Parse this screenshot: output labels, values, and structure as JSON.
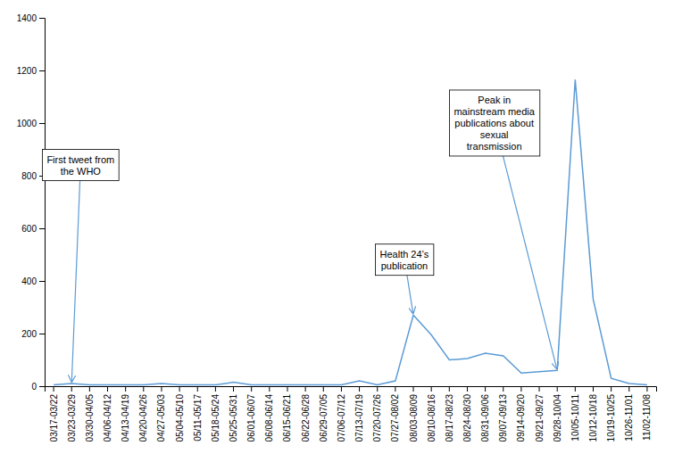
{
  "chart_data": {
    "type": "line",
    "categories": [
      "03/17-03/22",
      "03/23-03/29",
      "03/30-04/05",
      "04/06-04/12",
      "04/13-04/19",
      "04/20-04/26",
      "04/27-05/03",
      "05/04-05/10",
      "05/11-05/17",
      "05/18-05/24",
      "05/25-05/31",
      "06/01-06/07",
      "06/08-06/14",
      "06/15-06/21",
      "06/22-06/28",
      "06/29-07/05",
      "07/06-07/12",
      "07/13-07/19",
      "07/20-07/26",
      "07/27-08/02",
      "08/03-08/09",
      "08/10-08/16",
      "08/17-08/23",
      "08/24-08/30",
      "08/31-09/06",
      "09/07-09/13",
      "09/14-09/20",
      "09/21-09/27",
      "09/28-10/04",
      "10/05-10/11",
      "10/12-10/18",
      "10/19-10/25",
      "10/26-11/01",
      "11/02-11/08"
    ],
    "values": [
      5,
      10,
      5,
      5,
      5,
      5,
      10,
      5,
      5,
      5,
      15,
      5,
      5,
      5,
      5,
      5,
      5,
      20,
      5,
      20,
      270,
      195,
      100,
      105,
      125,
      115,
      50,
      55,
      60,
      1165,
      330,
      30,
      10,
      5
    ],
    "color": "#5B9BD5",
    "ylim": [
      0,
      1400
    ],
    "yticks": [
      0,
      200,
      400,
      600,
      800,
      1000,
      1200,
      1400
    ],
    "grid": false,
    "annotations": [
      {
        "text": "First tweet from\nthe WHO",
        "x": "03/23-03/29",
        "y": 10
      },
      {
        "text": "Health 24’s\npublication",
        "x": "08/03-08/09",
        "y": 270
      },
      {
        "text": "Peak in\nmainstream media\npublications about\nsexual\ntransmission",
        "x": "09/28-10/04",
        "y": 60
      }
    ]
  }
}
